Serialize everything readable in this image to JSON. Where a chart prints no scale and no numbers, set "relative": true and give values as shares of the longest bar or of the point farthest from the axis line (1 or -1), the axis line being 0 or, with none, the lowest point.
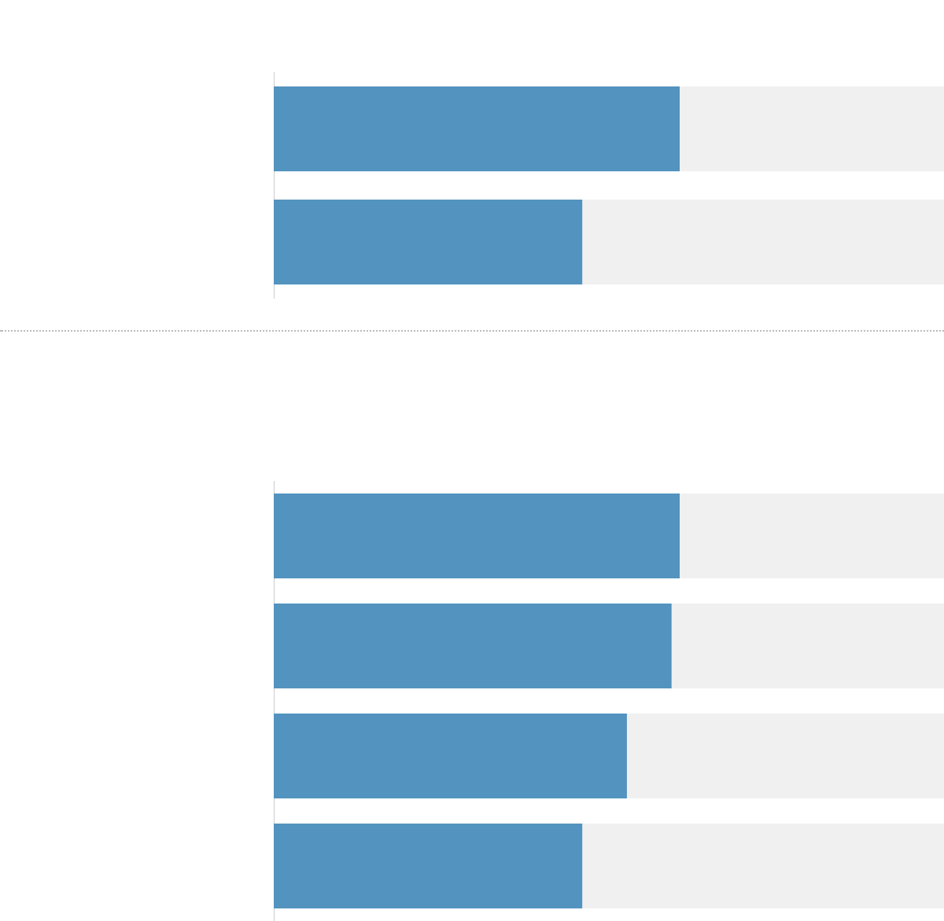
{
  "chart_data": [
    {
      "type": "bar",
      "orientation": "horizontal",
      "relative": true,
      "categories": [
        null,
        null
      ],
      "values": [
        1,
        0.76
      ],
      "color": "#5393bf",
      "legend": false,
      "tick_labels": false
    },
    {
      "type": "bar",
      "orientation": "horizontal",
      "relative": true,
      "categories": [
        null,
        null,
        null,
        null
      ],
      "values": [
        1,
        0.98,
        0.87,
        0.76
      ],
      "color": "#5393bf",
      "legend": false,
      "tick_labels": false
    }
  ]
}
